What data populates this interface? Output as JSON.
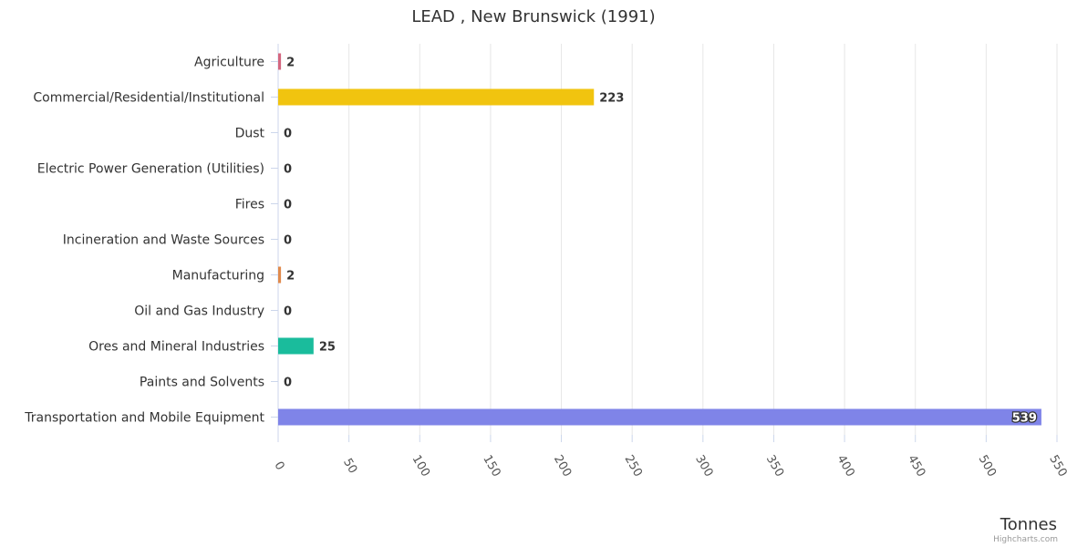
{
  "chart_data": {
    "type": "bar",
    "orientation": "horizontal",
    "title": "LEAD , New Brunswick (1991)",
    "xlabel": "",
    "ylabel": "Tonnes",
    "categories": [
      "Agriculture",
      "Commercial/Residential/Institutional",
      "Dust",
      "Electric Power Generation (Utilities)",
      "Fires",
      "Incineration and Waste Sources",
      "Manufacturing",
      "Oil and Gas Industry",
      "Ores and Mineral Industries",
      "Paints and Solvents",
      "Transportation and Mobile Equipment"
    ],
    "values": [
      2,
      223,
      0,
      0,
      0,
      0,
      2,
      0,
      25,
      0,
      539
    ],
    "colors": [
      "#d4667f",
      "#f1c40f",
      "#cfcfcf",
      "#cfcfcf",
      "#cfcfcf",
      "#cfcfcf",
      "#e08a4c",
      "#cfcfcf",
      "#1abc9c",
      "#cfcfcf",
      "#7f84e8"
    ],
    "ylim": [
      0,
      550
    ],
    "ticks": [
      0,
      50,
      100,
      150,
      200,
      250,
      300,
      350,
      400,
      450,
      500,
      550
    ],
    "grid": true,
    "legend": "none"
  },
  "credits": "Highcharts.com"
}
